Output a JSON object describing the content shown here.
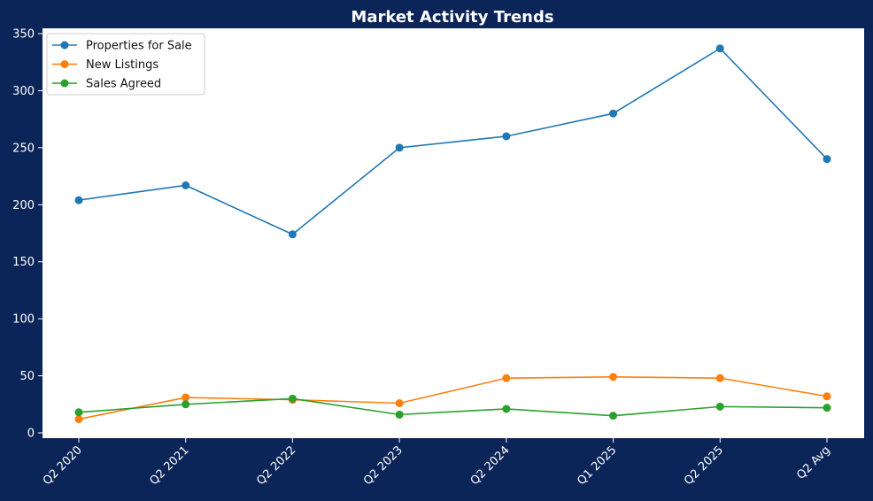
{
  "chart_data": {
    "type": "line",
    "title": "Market Activity Trends",
    "xlabel": "",
    "ylabel": "",
    "categories": [
      "Q2 2020",
      "Q2 2021",
      "Q2 2022",
      "Q2 2023",
      "Q2 2024",
      "Q1 2025",
      "Q2 2025",
      "Q2 Avg"
    ],
    "ylim": [
      0,
      350
    ],
    "yticks": [
      0,
      50,
      100,
      150,
      200,
      250,
      300,
      350
    ],
    "grid": false,
    "legend_position": "top-left",
    "colors": {
      "background": "#0b2559",
      "plot_area": "#ffffff",
      "text": "#ffffff"
    },
    "series": [
      {
        "name": "Properties for Sale",
        "color": "#1f77b4",
        "values": [
          204,
          217,
          174,
          250,
          260,
          280,
          337,
          240
        ]
      },
      {
        "name": "New Listings",
        "color": "#ff7f0e",
        "values": [
          12,
          31,
          29,
          26,
          48,
          49,
          48,
          32
        ]
      },
      {
        "name": "Sales Agreed",
        "color": "#2ca02c",
        "values": [
          18,
          25,
          30,
          16,
          21,
          15,
          23,
          22
        ]
      }
    ]
  }
}
